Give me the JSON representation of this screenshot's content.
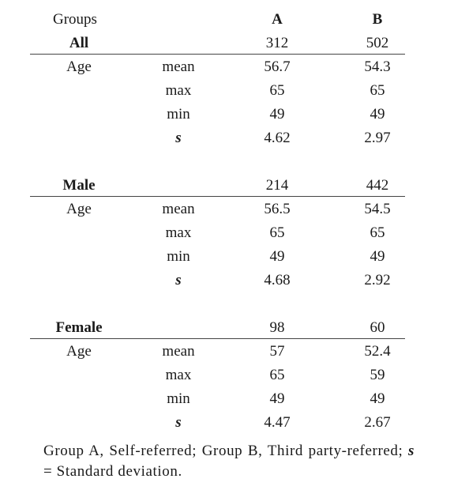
{
  "header": {
    "groups_label": "Groups",
    "col_a": "A",
    "col_b": "B"
  },
  "sections": [
    {
      "name": "All",
      "count_a": "312",
      "count_b": "502",
      "var_label": "Age",
      "stats": [
        {
          "label": "mean",
          "a": "56.7",
          "b": "54.3"
        },
        {
          "label": "max",
          "a": "65",
          "b": "65"
        },
        {
          "label": "min",
          "a": "49",
          "b": "49"
        },
        {
          "label": "s",
          "a": "4.62",
          "b": "2.97"
        }
      ]
    },
    {
      "name": "Male",
      "count_a": "214",
      "count_b": "442",
      "var_label": "Age",
      "stats": [
        {
          "label": "mean",
          "a": "56.5",
          "b": "54.5"
        },
        {
          "label": "max",
          "a": "65",
          "b": "65"
        },
        {
          "label": "min",
          "a": "49",
          "b": "49"
        },
        {
          "label": "s",
          "a": "4.68",
          "b": "2.92"
        }
      ]
    },
    {
      "name": "Female",
      "count_a": "98",
      "count_b": "60",
      "var_label": "Age",
      "stats": [
        {
          "label": "mean",
          "a": "57",
          "b": "52.4"
        },
        {
          "label": "max",
          "a": "65",
          "b": "59"
        },
        {
          "label": "min",
          "a": "49",
          "b": "49"
        },
        {
          "label": "s",
          "a": "4.47",
          "b": "2.67"
        }
      ]
    }
  ],
  "footnote": {
    "part1": "Group A, Self-referred; Group B, Third party-referred; ",
    "s_symbol": "s",
    "part2": " = Standard deviation."
  }
}
